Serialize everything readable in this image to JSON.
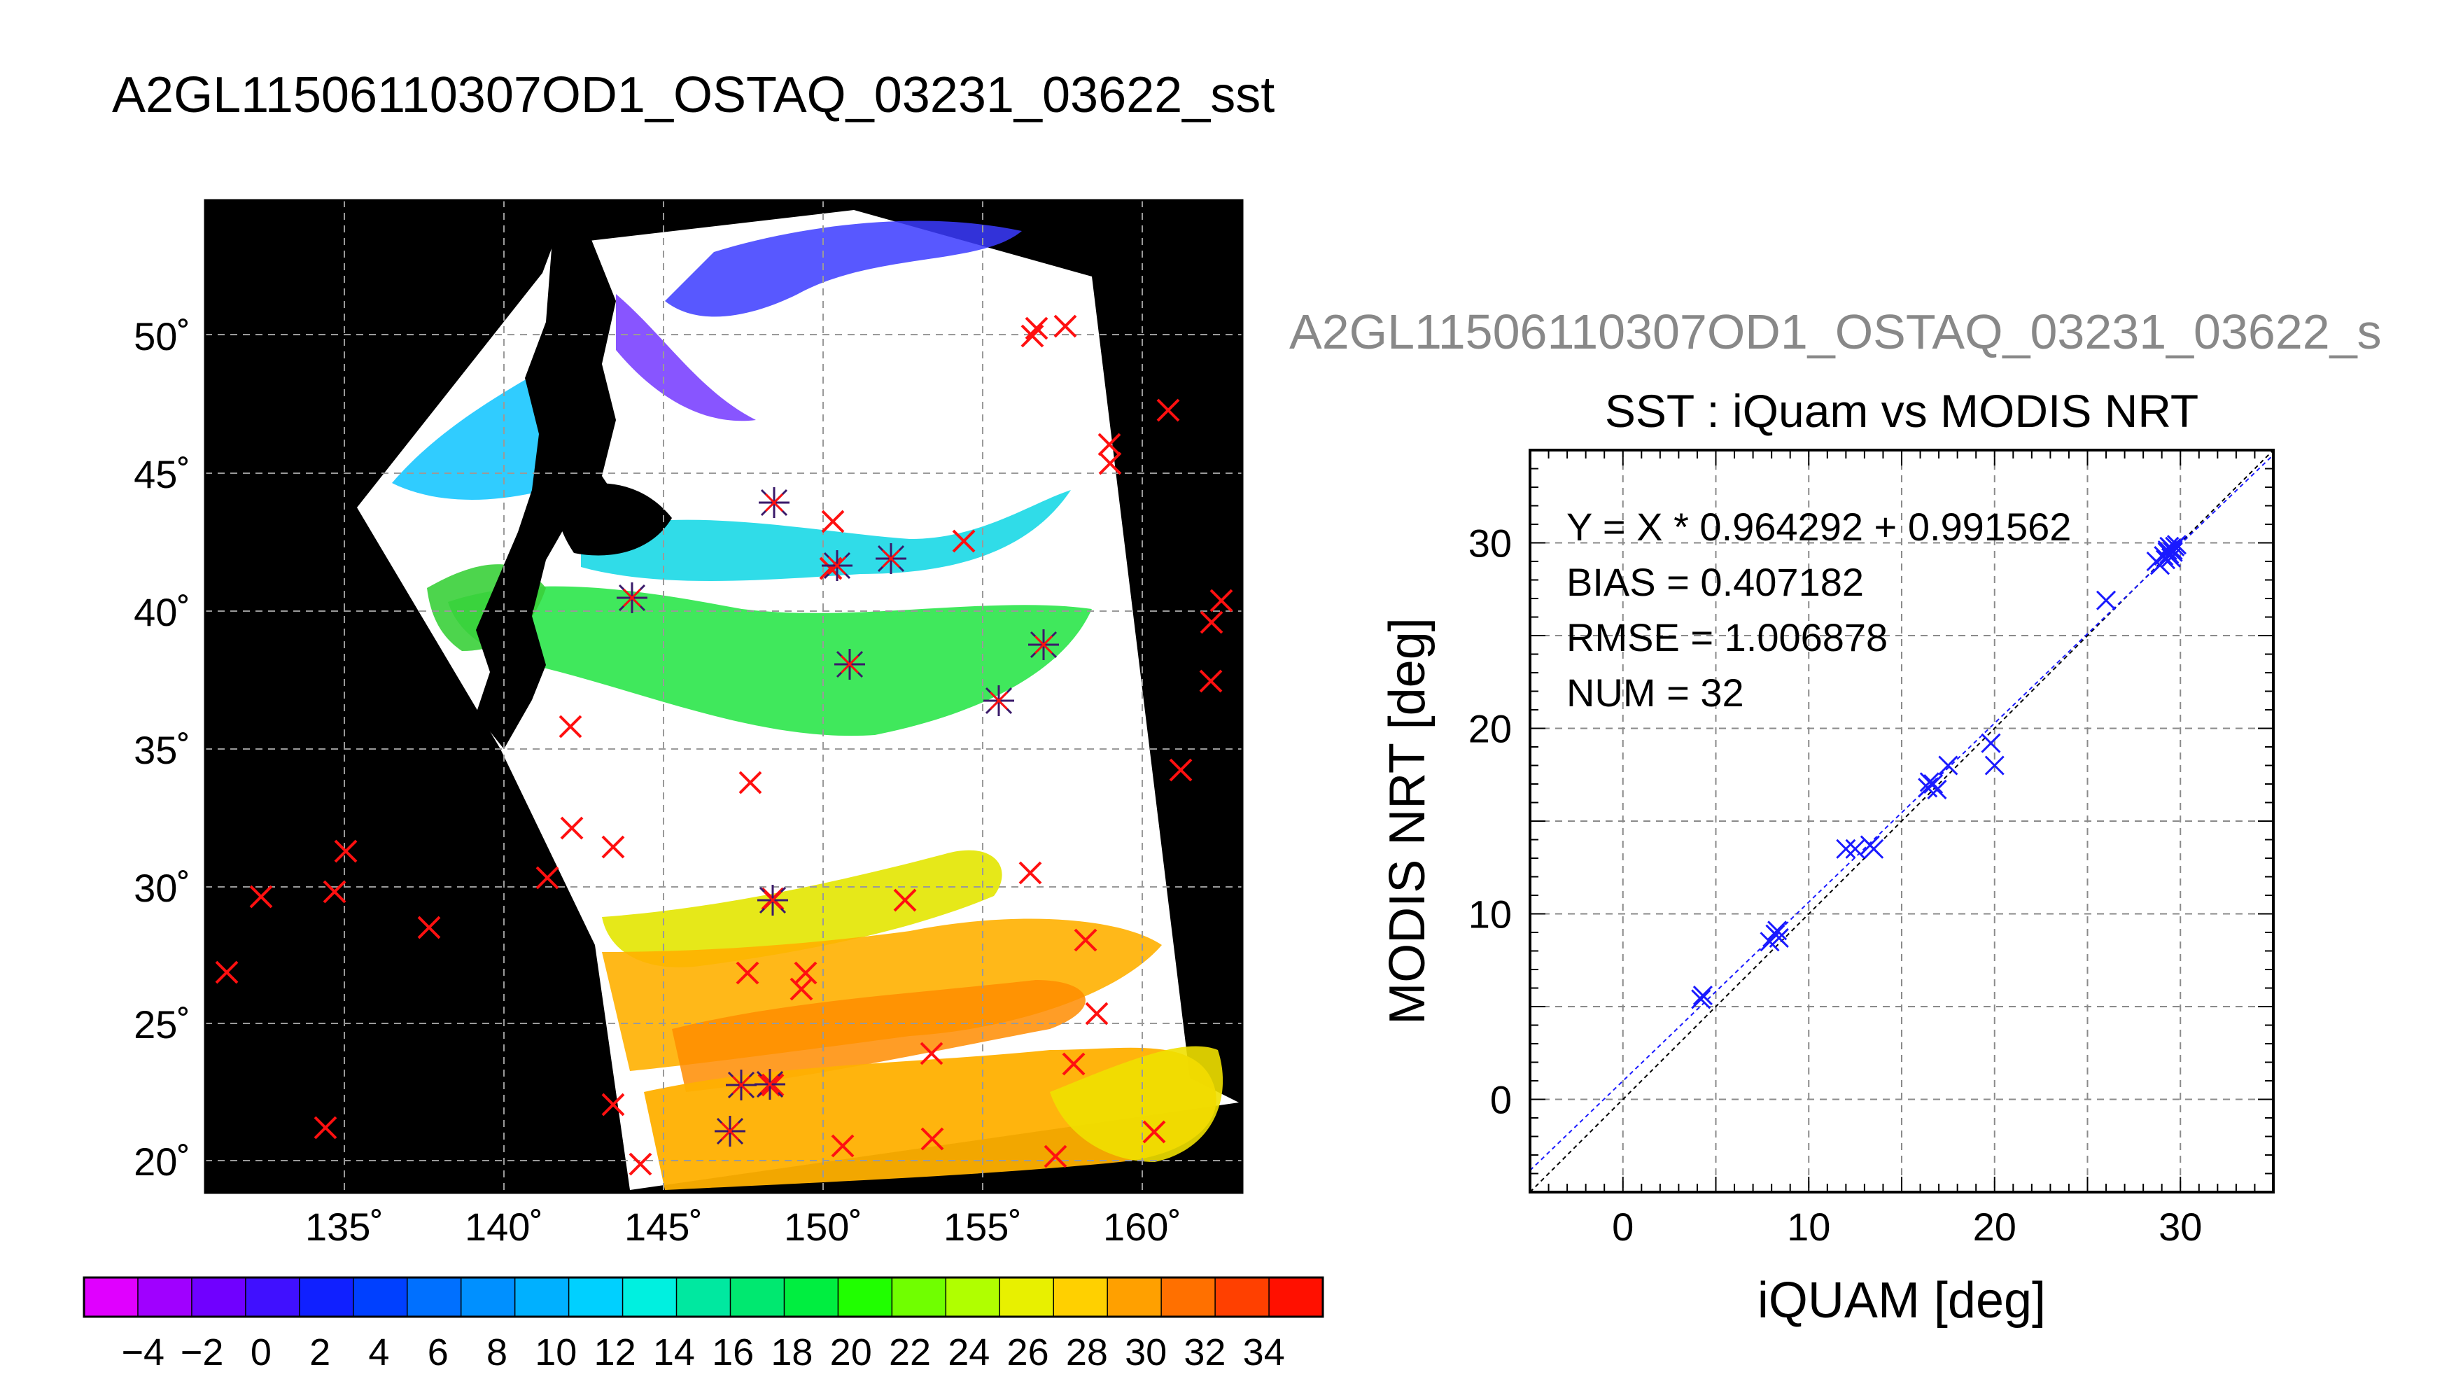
{
  "map_panel": {
    "title": "A2GL11506110307OD1_OSTAQ_03231_03622_sst",
    "lon_ticks": [
      "135˚",
      "140˚",
      "145˚",
      "150˚",
      "155˚",
      "160˚"
    ],
    "lat_ticks": [
      "50˚",
      "45˚",
      "40˚",
      "35˚",
      "30˚",
      "25˚",
      "20˚"
    ],
    "colorbar_labels": [
      "−4",
      "−2",
      "0",
      "2",
      "4",
      "6",
      "8",
      "10",
      "12",
      "14",
      "16",
      "18",
      "20",
      "22",
      "24",
      "26",
      "28",
      "30",
      "32",
      "34"
    ],
    "colorbar_colors": [
      "#e000ff",
      "#a000ff",
      "#7000ff",
      "#4010ff",
      "#1020ff",
      "#0040ff",
      "#0070ff",
      "#0090ff",
      "#00b0ff",
      "#00d0ff",
      "#00f0e0",
      "#00e8a0",
      "#00e870",
      "#00ee40",
      "#20ff00",
      "#70ff00",
      "#b0ff00",
      "#e8f000",
      "#ffd000",
      "#ffa000",
      "#ff7000",
      "#ff4000",
      "#ff1000"
    ]
  },
  "chart_data": {
    "type": "scatter",
    "supertitle": "A2GL11506110307OD1_OSTAQ_03231_03622_s",
    "title": "SST : iQuam vs MODIS NRT",
    "xlabel": "iQUAM [deg]",
    "ylabel": "MODIS NRT [deg]",
    "xlim": [
      -5,
      35
    ],
    "ylim": [
      -5,
      35
    ],
    "xticks": [
      0,
      10,
      20,
      30
    ],
    "yticks": [
      0,
      10,
      20,
      30
    ],
    "grid": true,
    "stats": [
      "Y = X * 0.964292 + 0.991562",
      "BIAS = 0.407182",
      "RMSE = 1.006878",
      "NUM = 32"
    ],
    "fit": {
      "slope": 0.964292,
      "intercept": 0.991562
    },
    "marker_color": "#1a1aff",
    "x": [
      4.2,
      4.3,
      7.9,
      8.2,
      8.4,
      12.0,
      12.5,
      13.3,
      13.5,
      16.4,
      16.7,
      16.9,
      17.5,
      19.8,
      20.0,
      26.0,
      28.7,
      28.9,
      29.1,
      29.3,
      29.4,
      29.5,
      29.6,
      29.7,
      29.6,
      29.2,
      29.4,
      16.5,
      8.3,
      29.8,
      29.5,
      29.3
    ],
    "y": [
      5.4,
      5.6,
      8.5,
      8.9,
      8.7,
      13.5,
      13.5,
      13.7,
      13.5,
      16.8,
      17.0,
      16.7,
      18.0,
      19.2,
      18.0,
      26.9,
      29.0,
      28.8,
      29.3,
      29.6,
      29.8,
      29.7,
      29.6,
      29.8,
      29.5,
      29.1,
      29.4,
      17.1,
      9.1,
      29.9,
      29.2,
      29.5
    ]
  }
}
